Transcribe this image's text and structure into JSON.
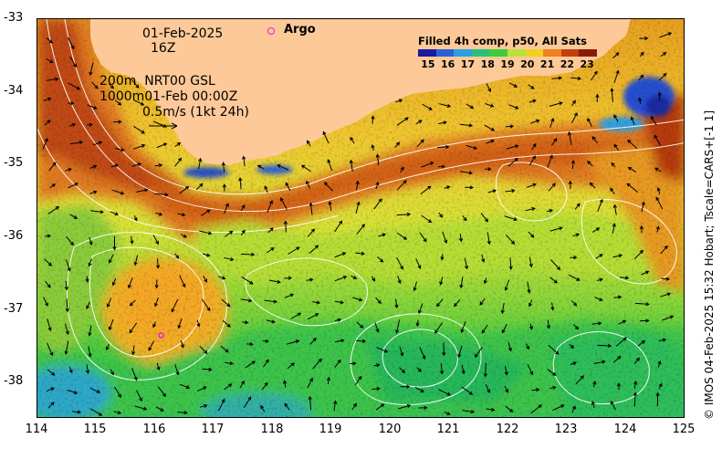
{
  "map": {
    "date": "01-Feb-2025",
    "hour": "16Z",
    "depth_info_line1": "200m  NRT00 GSL",
    "depth_info_line2": "1000m01-Feb 00:00Z",
    "vector_scale_label": "0.5m/s (1kt 24h)",
    "argo_label": "Argo",
    "legend_title": "Filled 4h comp, p50, All Sats",
    "colorbar_labels": [
      "15",
      "16",
      "17",
      "18",
      "19",
      "20",
      "21",
      "22",
      "23"
    ],
    "colorbar_colors": [
      "#1a1aa0",
      "#2c5fd8",
      "#2ba0e0",
      "#27c07a",
      "#3ccc3c",
      "#b8e23a",
      "#f0d020",
      "#f08020",
      "#c04010",
      "#8c1a0a"
    ],
    "credit": "© IMOS 04-Feb-2025 15:32 Hobart; Tscale=CARS+[-1 1]",
    "land_color": "#fdc998",
    "argo_marker_color": "#e020e0",
    "x_ticks": [
      "114",
      "115",
      "116",
      "117",
      "118",
      "119",
      "120",
      "121",
      "122",
      "123",
      "124",
      "125"
    ],
    "y_ticks": [
      "-33",
      "-34",
      "-35",
      "-36",
      "-37",
      "-38"
    ],
    "argo_floats": [
      {
        "lon": 116.1,
        "lat": -37.33
      }
    ]
  }
}
